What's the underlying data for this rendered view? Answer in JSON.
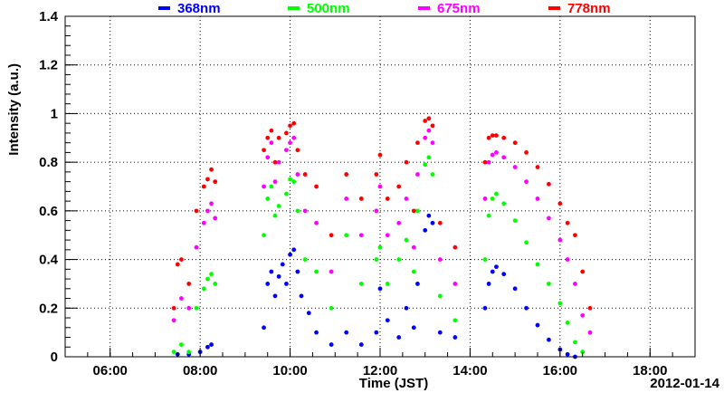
{
  "chart_data": {
    "type": "scatter",
    "title": "",
    "xlabel": "Time (JST)",
    "ylabel": "Intensity (a.u.)",
    "date_label": "2012-01-14",
    "xlim": [
      "05:00",
      "19:00"
    ],
    "ylim": [
      0,
      1.4
    ],
    "x_ticks": [
      "06:00",
      "08:00",
      "10:00",
      "12:00",
      "14:00",
      "16:00",
      "18:00"
    ],
    "y_ticks": [
      "0",
      "0.2",
      "0.4",
      "0.6",
      "0.8",
      "1",
      "1.2",
      "1.4"
    ],
    "grid": true,
    "legend_placement": "top",
    "series": [
      {
        "name": "368nm",
        "color": "#0000ff",
        "points": [
          [
            "07:30",
            0.01
          ],
          [
            "07:45",
            0.01
          ],
          [
            "08:00",
            0.02
          ],
          [
            "08:10",
            0.04
          ],
          [
            "08:15",
            0.05
          ],
          [
            "09:25",
            0.12
          ],
          [
            "09:30",
            0.3
          ],
          [
            "09:35",
            0.35
          ],
          [
            "09:40",
            0.25
          ],
          [
            "09:45",
            0.33
          ],
          [
            "09:50",
            0.38
          ],
          [
            "09:55",
            0.3
          ],
          [
            "10:00",
            0.42
          ],
          [
            "10:05",
            0.44
          ],
          [
            "10:10",
            0.35
          ],
          [
            "10:15",
            0.25
          ],
          [
            "10:25",
            0.18
          ],
          [
            "10:35",
            0.1
          ],
          [
            "10:55",
            0.05
          ],
          [
            "11:15",
            0.1
          ],
          [
            "11:35",
            0.05
          ],
          [
            "11:55",
            0.1
          ],
          [
            "12:00",
            0.28
          ],
          [
            "12:10",
            0.15
          ],
          [
            "12:25",
            0.08
          ],
          [
            "12:35",
            0.2
          ],
          [
            "12:45",
            0.12
          ],
          [
            "12:50",
            0.3
          ],
          [
            "13:00",
            0.52
          ],
          [
            "13:05",
            0.58
          ],
          [
            "13:10",
            0.55
          ],
          [
            "13:20",
            0.1
          ],
          [
            "13:40",
            0.08
          ],
          [
            "14:20",
            0.2
          ],
          [
            "14:25",
            0.3
          ],
          [
            "14:30",
            0.35
          ],
          [
            "14:35",
            0.37
          ],
          [
            "14:45",
            0.34
          ],
          [
            "15:00",
            0.28
          ],
          [
            "15:15",
            0.2
          ],
          [
            "15:30",
            0.13
          ],
          [
            "15:45",
            0.07
          ],
          [
            "16:00",
            0.03
          ],
          [
            "16:10",
            0.01
          ],
          [
            "16:20",
            0.0
          ]
        ]
      },
      {
        "name": "500nm",
        "color": "#00ff00",
        "points": [
          [
            "07:25",
            0.02
          ],
          [
            "07:35",
            0.05
          ],
          [
            "07:45",
            0.02
          ],
          [
            "07:55",
            0.2
          ],
          [
            "08:05",
            0.28
          ],
          [
            "08:10",
            0.32
          ],
          [
            "08:15",
            0.34
          ],
          [
            "08:20",
            0.3
          ],
          [
            "09:25",
            0.5
          ],
          [
            "09:30",
            0.65
          ],
          [
            "09:35",
            0.7
          ],
          [
            "09:40",
            0.58
          ],
          [
            "09:45",
            0.62
          ],
          [
            "09:55",
            0.67
          ],
          [
            "10:00",
            0.73
          ],
          [
            "10:05",
            0.72
          ],
          [
            "10:10",
            0.6
          ],
          [
            "10:20",
            0.4
          ],
          [
            "10:35",
            0.35
          ],
          [
            "10:55",
            0.2
          ],
          [
            "11:15",
            0.5
          ],
          [
            "11:35",
            0.3
          ],
          [
            "11:55",
            0.4
          ],
          [
            "12:00",
            0.45
          ],
          [
            "12:10",
            0.3
          ],
          [
            "12:25",
            0.4
          ],
          [
            "12:35",
            0.48
          ],
          [
            "12:45",
            0.35
          ],
          [
            "12:50",
            0.6
          ],
          [
            "13:00",
            0.79
          ],
          [
            "13:05",
            0.82
          ],
          [
            "13:10",
            0.75
          ],
          [
            "13:20",
            0.25
          ],
          [
            "13:40",
            0.15
          ],
          [
            "14:20",
            0.4
          ],
          [
            "14:25",
            0.58
          ],
          [
            "14:30",
            0.65
          ],
          [
            "14:35",
            0.67
          ],
          [
            "14:45",
            0.63
          ],
          [
            "15:00",
            0.56
          ],
          [
            "15:15",
            0.47
          ],
          [
            "15:30",
            0.38
          ],
          [
            "15:45",
            0.3
          ],
          [
            "16:00",
            0.22
          ],
          [
            "16:10",
            0.14
          ],
          [
            "16:20",
            0.06
          ],
          [
            "16:30",
            0.02
          ]
        ]
      },
      {
        "name": "675nm",
        "color": "#ff00ff",
        "points": [
          [
            "07:25",
            0.15
          ],
          [
            "07:35",
            0.24
          ],
          [
            "07:45",
            0.2
          ],
          [
            "07:55",
            0.45
          ],
          [
            "08:05",
            0.55
          ],
          [
            "08:10",
            0.6
          ],
          [
            "08:15",
            0.63
          ],
          [
            "08:20",
            0.57
          ],
          [
            "09:25",
            0.7
          ],
          [
            "09:30",
            0.82
          ],
          [
            "09:35",
            0.88
          ],
          [
            "09:40",
            0.72
          ],
          [
            "09:45",
            0.8
          ],
          [
            "09:55",
            0.85
          ],
          [
            "10:00",
            0.88
          ],
          [
            "10:05",
            0.9
          ],
          [
            "10:10",
            0.75
          ],
          [
            "10:20",
            0.6
          ],
          [
            "10:35",
            0.55
          ],
          [
            "10:55",
            0.35
          ],
          [
            "11:15",
            0.65
          ],
          [
            "11:35",
            0.5
          ],
          [
            "11:55",
            0.6
          ],
          [
            "12:00",
            0.7
          ],
          [
            "12:10",
            0.5
          ],
          [
            "12:25",
            0.55
          ],
          [
            "12:35",
            0.65
          ],
          [
            "12:45",
            0.45
          ],
          [
            "12:50",
            0.75
          ],
          [
            "13:00",
            0.9
          ],
          [
            "13:05",
            0.93
          ],
          [
            "13:10",
            0.88
          ],
          [
            "13:20",
            0.4
          ],
          [
            "13:40",
            0.3
          ],
          [
            "14:20",
            0.65
          ],
          [
            "14:25",
            0.8
          ],
          [
            "14:30",
            0.83
          ],
          [
            "14:35",
            0.84
          ],
          [
            "14:45",
            0.82
          ],
          [
            "15:00",
            0.78
          ],
          [
            "15:15",
            0.72
          ],
          [
            "15:30",
            0.65
          ],
          [
            "15:45",
            0.57
          ],
          [
            "16:00",
            0.48
          ],
          [
            "16:10",
            0.4
          ],
          [
            "16:20",
            0.3
          ],
          [
            "16:30",
            0.17
          ],
          [
            "16:40",
            0.1
          ]
        ]
      },
      {
        "name": "778nm",
        "color": "#ff0000",
        "points": [
          [
            "07:25",
            0.2
          ],
          [
            "07:30",
            0.38
          ],
          [
            "07:35",
            0.4
          ],
          [
            "07:45",
            0.3
          ],
          [
            "07:55",
            0.6
          ],
          [
            "08:05",
            0.7
          ],
          [
            "08:10",
            0.73
          ],
          [
            "08:15",
            0.77
          ],
          [
            "08:20",
            0.72
          ],
          [
            "09:25",
            0.85
          ],
          [
            "09:30",
            0.9
          ],
          [
            "09:35",
            0.93
          ],
          [
            "09:40",
            0.8
          ],
          [
            "09:45",
            0.9
          ],
          [
            "09:55",
            0.92
          ],
          [
            "10:00",
            0.95
          ],
          [
            "10:05",
            0.96
          ],
          [
            "10:10",
            0.85
          ],
          [
            "10:20",
            0.75
          ],
          [
            "10:35",
            0.7
          ],
          [
            "10:55",
            0.5
          ],
          [
            "11:15",
            0.75
          ],
          [
            "11:35",
            0.65
          ],
          [
            "11:55",
            0.75
          ],
          [
            "12:00",
            0.83
          ],
          [
            "12:10",
            0.65
          ],
          [
            "12:25",
            0.7
          ],
          [
            "12:35",
            0.8
          ],
          [
            "12:45",
            0.6
          ],
          [
            "12:50",
            0.88
          ],
          [
            "13:00",
            0.97
          ],
          [
            "13:05",
            0.98
          ],
          [
            "13:10",
            0.95
          ],
          [
            "13:20",
            0.55
          ],
          [
            "13:40",
            0.45
          ],
          [
            "14:20",
            0.8
          ],
          [
            "14:25",
            0.9
          ],
          [
            "14:30",
            0.91
          ],
          [
            "14:35",
            0.91
          ],
          [
            "14:45",
            0.9
          ],
          [
            "15:00",
            0.88
          ],
          [
            "15:15",
            0.84
          ],
          [
            "15:30",
            0.78
          ],
          [
            "15:45",
            0.71
          ],
          [
            "16:00",
            0.63
          ],
          [
            "16:10",
            0.55
          ],
          [
            "16:20",
            0.5
          ],
          [
            "16:30",
            0.35
          ],
          [
            "16:40",
            0.2
          ]
        ]
      }
    ]
  }
}
